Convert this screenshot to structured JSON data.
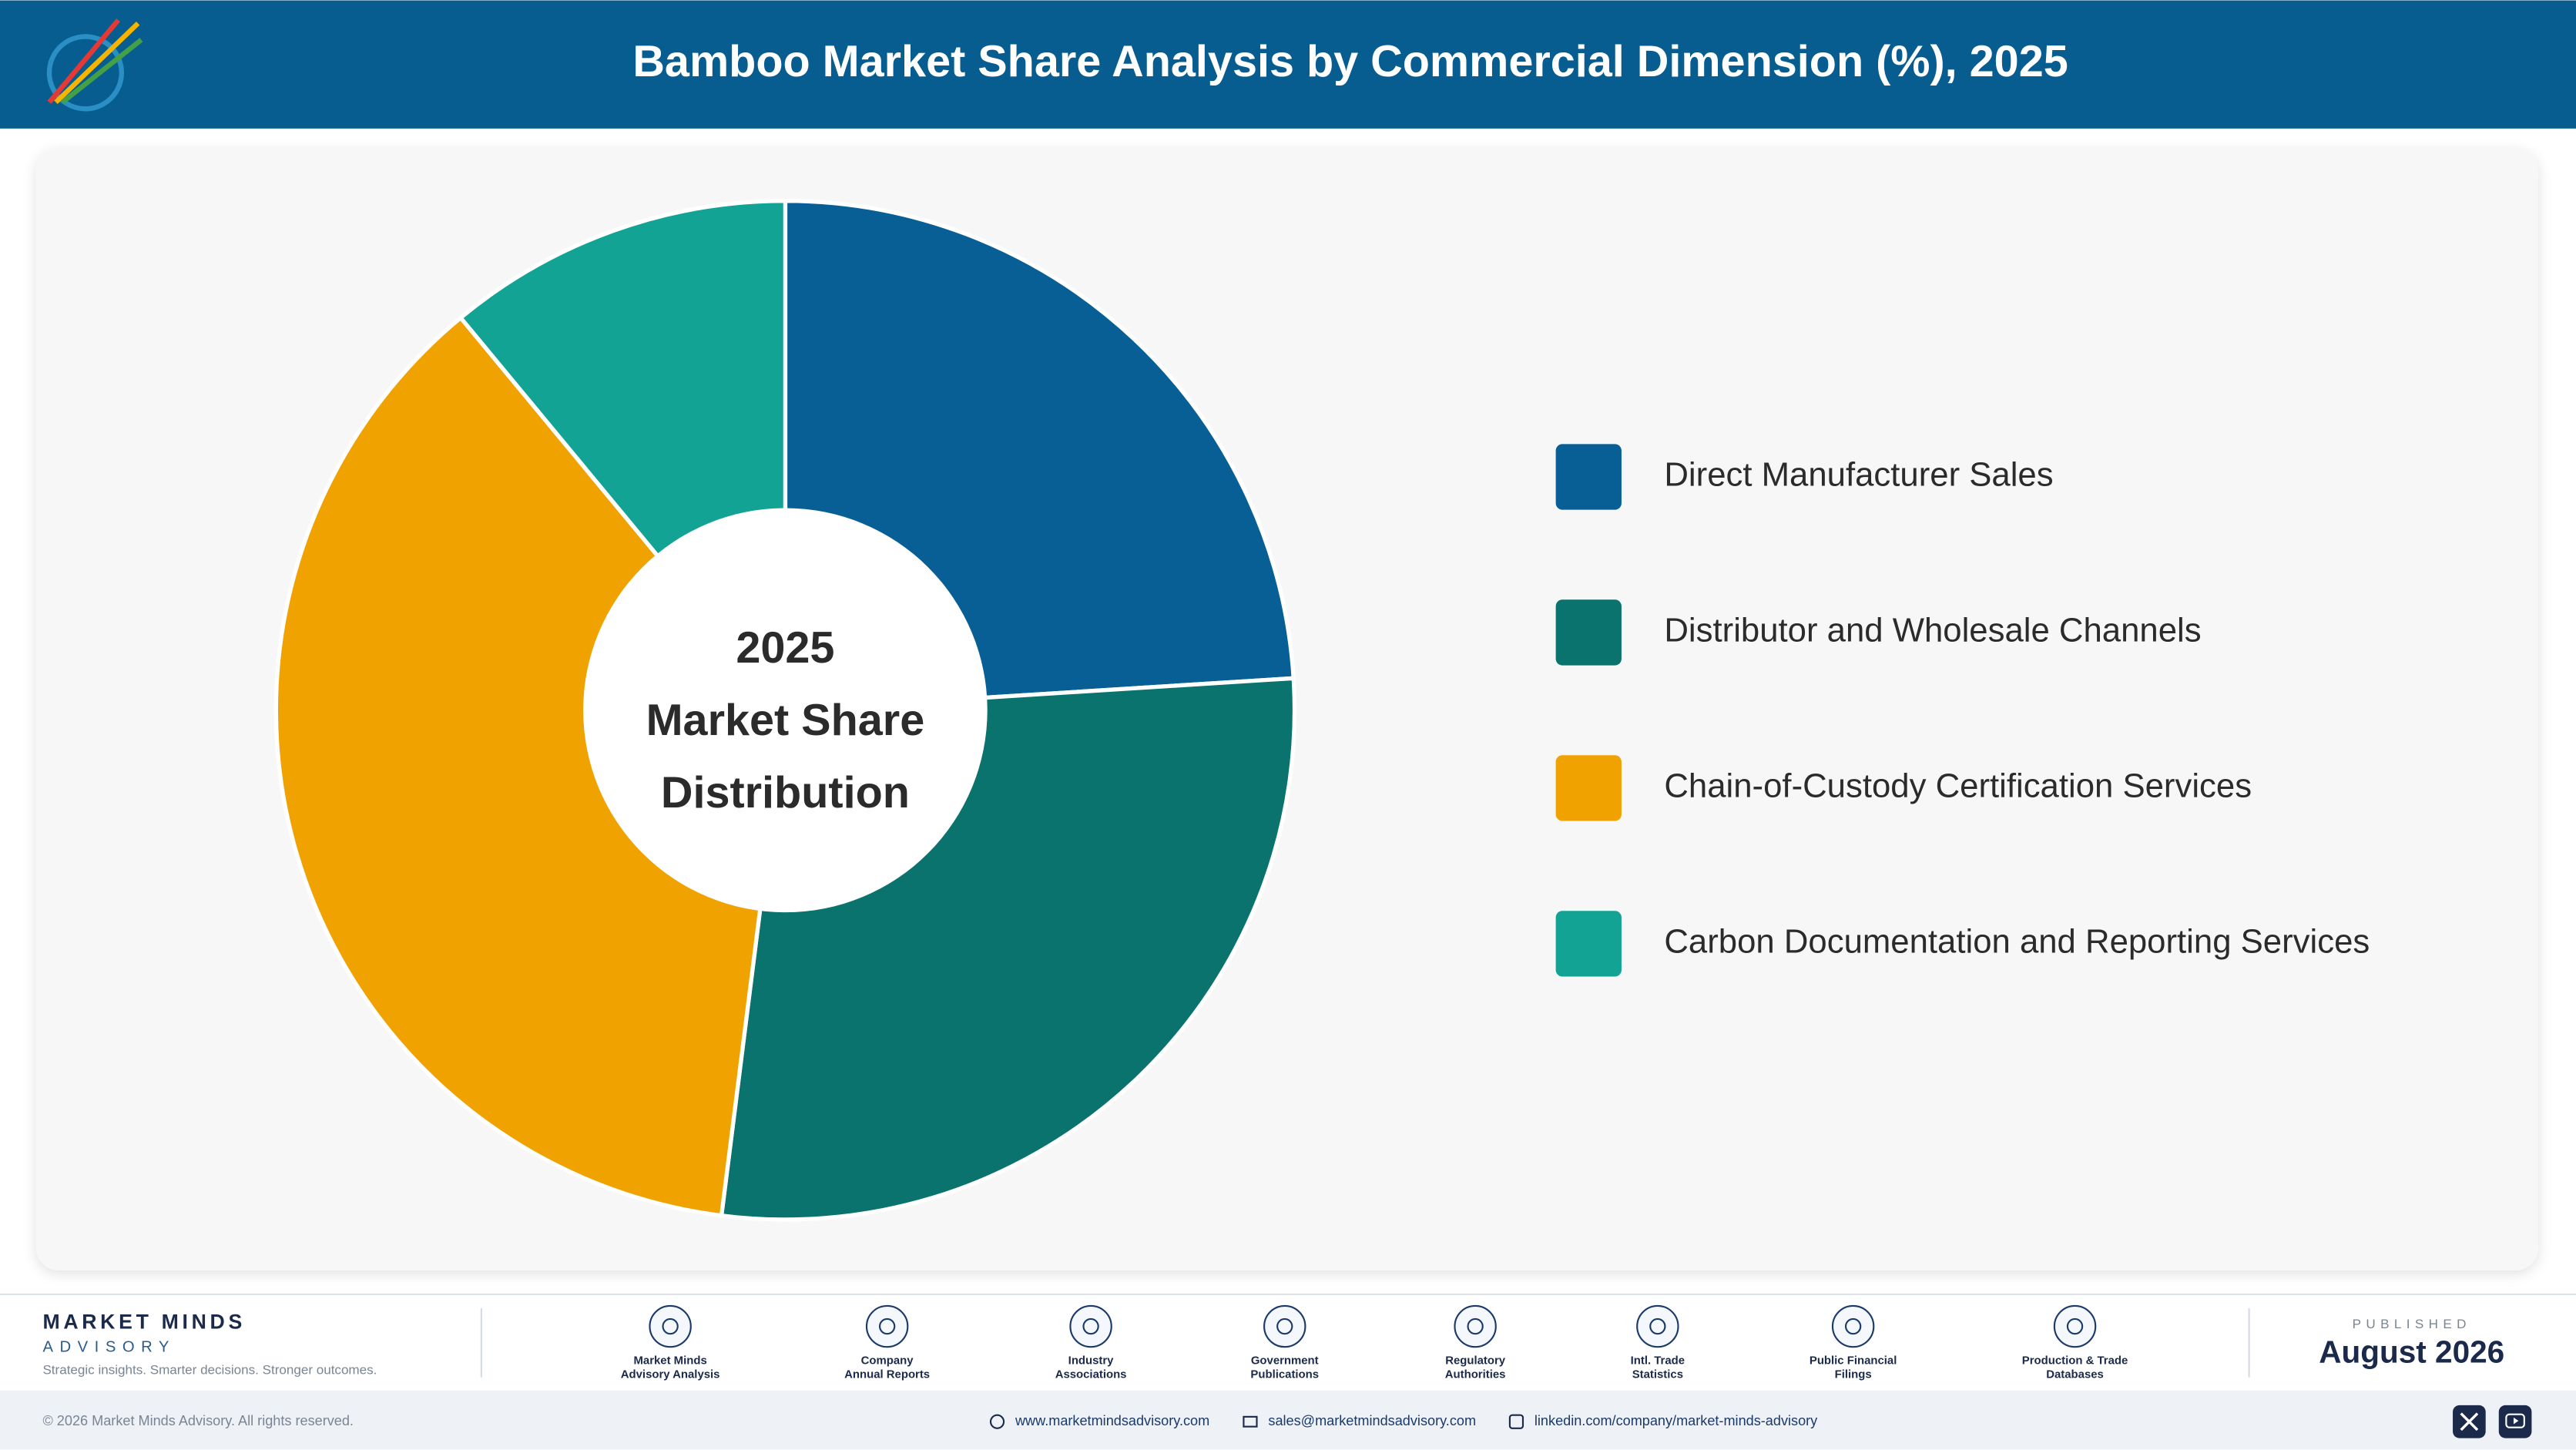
{
  "chart_data": {
    "type": "pie",
    "title": "Bamboo Market Share Analysis by Commercial Dimension (%), 2025",
    "center_text": [
      "2025",
      "Market Share",
      "Distribution"
    ],
    "categories": [
      "Direct Manufacturer Sales",
      "Distributor and Wholesale Channels",
      "Chain-of-Custody Certification Services",
      "Carbon Documentation and Reporting Services"
    ],
    "values": [
      24,
      28,
      37,
      11
    ],
    "colors": [
      "#075f96",
      "#0b736d",
      "#f0a300",
      "#12a394"
    ]
  },
  "footer": {
    "brand": "MARKET MINDS",
    "brand_sub": "ADVISORY",
    "tagline": "Strategic insights. Smarter decisions. Stronger outcomes.",
    "sources": [
      [
        "Market Minds",
        "Advisory Analysis"
      ],
      [
        "Company",
        "Annual Reports"
      ],
      [
        "Industry",
        "Associations"
      ],
      [
        "Government",
        "Publications"
      ],
      [
        "Regulatory",
        "Authorities"
      ],
      [
        "Intl. Trade",
        "Statistics"
      ],
      [
        "Public Financial",
        "Filings"
      ],
      [
        "Production & Trade",
        "Databases"
      ]
    ],
    "published_label": "PUBLISHED",
    "published_date": "August 2026",
    "copyright": "© 2026 Market Minds Advisory. All rights reserved.",
    "website": "www.marketmindsadvisory.com",
    "email": "sales@marketmindsadvisory.com",
    "linkedin": "linkedin.com/company/market-minds-advisory"
  }
}
